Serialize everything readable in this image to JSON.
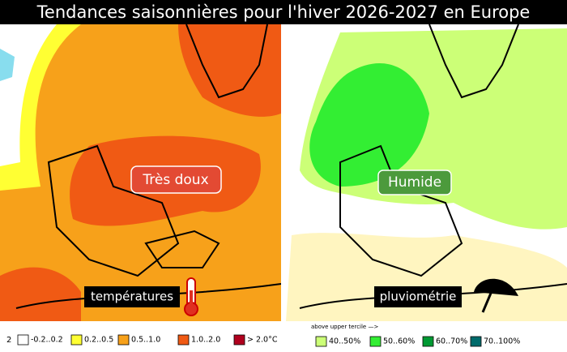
{
  "header": {
    "title": "Tendances saisonnières pour l'hiver 2026-2027 en Europe"
  },
  "maps": [
    {
      "badge": "Très doux",
      "caption": "températures"
    },
    {
      "badge": "Humide",
      "caption": "pluviométrie"
    }
  ],
  "legends": [
    {
      "prefix": "2",
      "items": [
        {
          "label": "-0.2..0.2",
          "color": "#ffffff"
        },
        {
          "label": "0.2..0.5",
          "color": "#ffff33"
        },
        {
          "label": "0.5..1.0",
          "color": "#f7a11a"
        },
        {
          "label": "1.0..2.0",
          "color": "#f05a14"
        },
        {
          "label": "> 2.0°C",
          "color": "#b0001e"
        }
      ]
    },
    {
      "prefix": "above upper tercile —>",
      "items": [
        {
          "label": "40..50%",
          "color": "#ccff77"
        },
        {
          "label": "50..60%",
          "color": "#33ee33"
        },
        {
          "label": "60..70%",
          "color": "#009933"
        },
        {
          "label": "70..100%",
          "color": "#006b6b"
        }
      ]
    }
  ]
}
